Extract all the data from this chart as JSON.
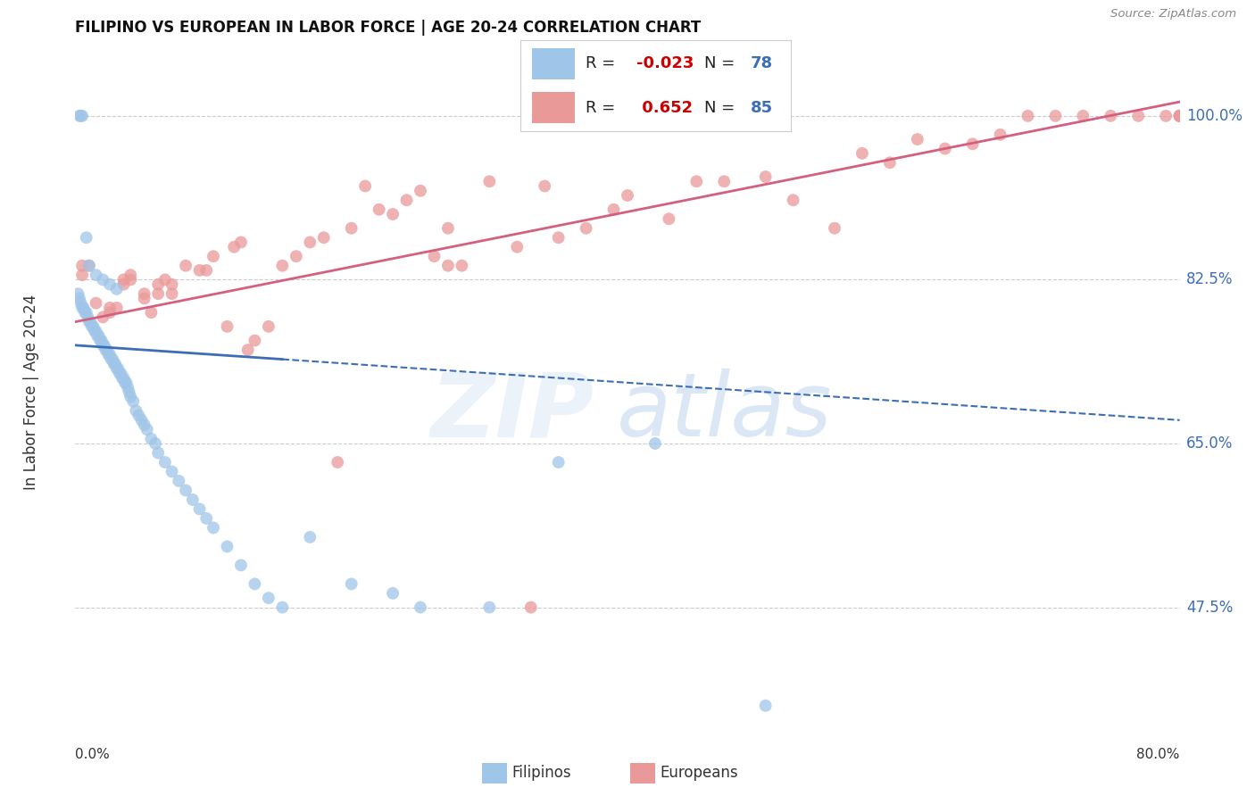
{
  "title": "FILIPINO VS EUROPEAN IN LABOR FORCE | AGE 20-24 CORRELATION CHART",
  "source": "Source: ZipAtlas.com",
  "ylabel": "In Labor Force | Age 20-24",
  "yticks": [
    47.5,
    65.0,
    82.5,
    100.0
  ],
  "ytick_labels": [
    "47.5%",
    "65.0%",
    "82.5%",
    "100.0%"
  ],
  "xlim": [
    0.0,
    80.0
  ],
  "ylim": [
    35.0,
    106.0
  ],
  "legend_r_blue": "-0.023",
  "legend_n_blue": "78",
  "legend_r_pink": "0.652",
  "legend_n_pink": "85",
  "blue_color": "#9fc5e8",
  "pink_color": "#ea9999",
  "blue_line_color": "#3d6eb5",
  "pink_line_color": "#d46080",
  "blue_line_solid_end": 15.0,
  "blue_line_y0": 75.5,
  "blue_line_y1": 67.5,
  "pink_line_y0": 78.0,
  "pink_line_y1": 101.5,
  "filipinos_x": [
    0.2,
    0.3,
    0.4,
    0.5,
    0.6,
    0.7,
    0.8,
    0.9,
    1.0,
    1.1,
    1.2,
    1.3,
    1.4,
    1.5,
    1.6,
    1.7,
    1.8,
    1.9,
    2.0,
    2.1,
    2.2,
    2.3,
    2.4,
    2.5,
    2.6,
    2.7,
    2.8,
    2.9,
    3.0,
    3.1,
    3.2,
    3.3,
    3.4,
    3.5,
    3.6,
    3.7,
    3.8,
    3.9,
    4.0,
    4.2,
    4.4,
    4.6,
    4.8,
    5.0,
    5.2,
    5.5,
    5.8,
    6.0,
    6.5,
    7.0,
    7.5,
    8.0,
    8.5,
    9.0,
    9.5,
    10.0,
    11.0,
    12.0,
    13.0,
    14.0,
    15.0,
    17.0,
    20.0,
    23.0,
    25.0,
    30.0,
    35.0,
    42.0,
    0.3,
    0.4,
    0.5,
    0.8,
    1.0,
    1.5,
    2.0,
    2.5,
    3.0,
    50.0
  ],
  "filipinos_y": [
    81.0,
    80.5,
    80.0,
    79.5,
    79.5,
    79.0,
    79.0,
    78.5,
    78.0,
    78.0,
    77.5,
    77.5,
    77.0,
    77.0,
    76.5,
    76.5,
    76.0,
    76.0,
    75.5,
    75.5,
    75.0,
    75.0,
    74.5,
    74.5,
    74.0,
    74.0,
    73.5,
    73.5,
    73.0,
    73.0,
    72.5,
    72.5,
    72.0,
    72.0,
    71.5,
    71.5,
    71.0,
    70.5,
    70.0,
    69.5,
    68.5,
    68.0,
    67.5,
    67.0,
    66.5,
    65.5,
    65.0,
    64.0,
    63.0,
    62.0,
    61.0,
    60.0,
    59.0,
    58.0,
    57.0,
    56.0,
    54.0,
    52.0,
    50.0,
    48.5,
    47.5,
    55.0,
    50.0,
    49.0,
    47.5,
    47.5,
    63.0,
    65.0,
    100.0,
    100.0,
    100.0,
    87.0,
    84.0,
    83.0,
    82.5,
    82.0,
    81.5,
    37.0
  ],
  "europeans_x": [
    0.5,
    0.5,
    1.0,
    1.5,
    2.0,
    2.5,
    2.5,
    3.0,
    3.5,
    3.5,
    4.0,
    4.0,
    5.0,
    5.0,
    5.5,
    6.0,
    6.0,
    6.5,
    7.0,
    7.0,
    8.0,
    9.0,
    9.5,
    10.0,
    11.0,
    11.5,
    12.0,
    12.5,
    13.0,
    14.0,
    15.0,
    16.0,
    17.0,
    18.0,
    20.0,
    21.0,
    22.0,
    23.0,
    24.0,
    25.0,
    26.0,
    27.0,
    28.0,
    30.0,
    32.0,
    34.0,
    35.0,
    37.0,
    39.0,
    40.0,
    43.0,
    45.0,
    47.0,
    50.0,
    52.0,
    55.0,
    57.0,
    59.0,
    61.0,
    63.0,
    65.0,
    67.0,
    69.0,
    71.0,
    73.0,
    75.0,
    77.0,
    79.0,
    80.0,
    80.0,
    80.0,
    80.0,
    80.0,
    19.0,
    27.0,
    33.0,
    82.0,
    83.0,
    84.0,
    85.0,
    86.0,
    85.5,
    85.0,
    84.5,
    84.0
  ],
  "europeans_y": [
    83.0,
    84.0,
    84.0,
    80.0,
    78.5,
    79.0,
    79.5,
    79.5,
    82.0,
    82.5,
    83.0,
    82.5,
    81.0,
    80.5,
    79.0,
    81.0,
    82.0,
    82.5,
    82.0,
    81.0,
    84.0,
    83.5,
    83.5,
    85.0,
    77.5,
    86.0,
    86.5,
    75.0,
    76.0,
    77.5,
    84.0,
    85.0,
    86.5,
    87.0,
    88.0,
    92.5,
    90.0,
    89.5,
    91.0,
    92.0,
    85.0,
    88.0,
    84.0,
    93.0,
    86.0,
    92.5,
    87.0,
    88.0,
    90.0,
    91.5,
    89.0,
    93.0,
    93.0,
    93.5,
    91.0,
    88.0,
    96.0,
    95.0,
    97.5,
    96.5,
    97.0,
    98.0,
    100.0,
    100.0,
    100.0,
    100.0,
    100.0,
    100.0,
    100.0,
    100.0,
    100.0,
    100.0,
    100.0,
    63.0,
    84.0,
    47.5,
    100.0,
    100.0,
    100.0,
    100.0,
    100.0,
    100.0,
    100.0,
    100.0,
    100.0
  ]
}
